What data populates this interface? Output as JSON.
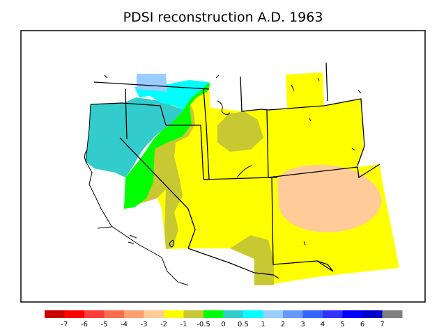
{
  "title": "PDSI reconstruction A.D. 1963",
  "colorbar": {
    "bins": [
      {
        "color": "#cc0000"
      },
      {
        "color": "#ff0000"
      },
      {
        "color": "#ff3c3c"
      },
      {
        "color": "#ff6e4a"
      },
      {
        "color": "#ffa070"
      },
      {
        "color": "#ffcc99"
      },
      {
        "color": "#ffff00"
      },
      {
        "color": "#c8c832"
      },
      {
        "color": "#00ff00"
      },
      {
        "color": "#33cccc"
      },
      {
        "color": "#00ffff"
      },
      {
        "color": "#99ccff"
      },
      {
        "color": "#6699ff"
      },
      {
        "color": "#3366ff"
      },
      {
        "color": "#3333ff"
      },
      {
        "color": "#0000ff"
      },
      {
        "color": "#0000cc"
      },
      {
        "color": "#808080"
      }
    ],
    "labels": [
      "-7",
      "-6",
      "-5",
      "-4",
      "-3",
      "-2",
      "-1",
      "-0.5",
      "0",
      "0.5",
      "1",
      "2",
      "3",
      "4",
      "5",
      "6",
      "7"
    ]
  },
  "legend_classes": {
    "cyan_teal": "0 to 0.5",
    "light_blue": "1 to 2",
    "cyan": "0.5 to 1",
    "green": "-0.5 to 0",
    "olive": "-1 to -0.5",
    "yellow": "-2 to -1",
    "peach": "-3 to -2"
  }
}
